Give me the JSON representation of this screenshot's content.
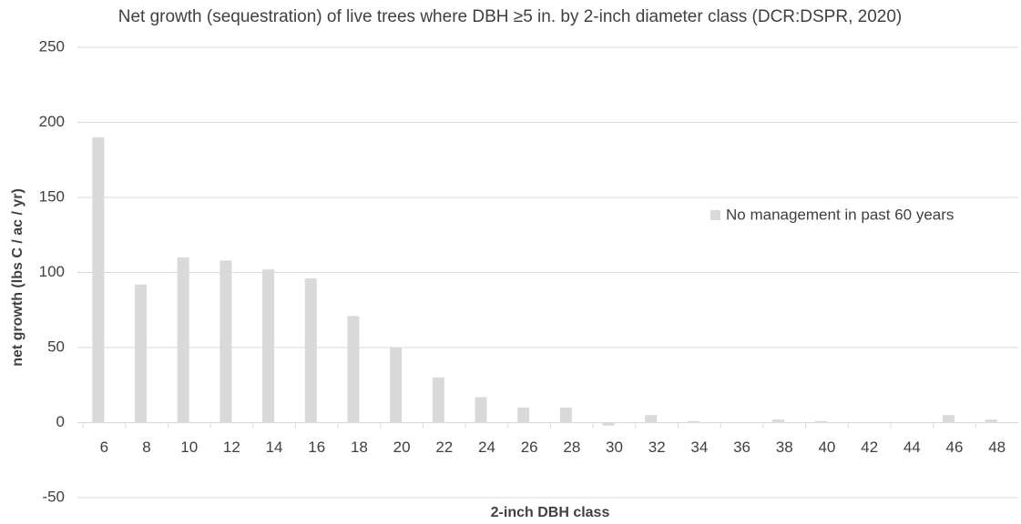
{
  "chart_data": {
    "type": "bar",
    "title": "Net growth (sequestration) of live trees where DBH ≥5 in. by 2-inch diameter class (DCR:DSPR, 2020)",
    "x_label": "2-inch DBH class",
    "y_label": "net growth (lbs C / ac / yr)",
    "categories": [
      6,
      8,
      10,
      12,
      14,
      16,
      18,
      20,
      22,
      24,
      26,
      28,
      30,
      32,
      34,
      36,
      38,
      40,
      42,
      44,
      46,
      48
    ],
    "series": [
      {
        "name": "No management in past 60 years",
        "color": "#d9d9d9",
        "values": [
          190,
          92,
          110,
          108,
          102,
          96,
          71,
          50,
          30,
          17,
          10,
          10,
          -2,
          5,
          1,
          0,
          2,
          1,
          0,
          0,
          5,
          2
        ]
      }
    ],
    "ylim": [
      -50,
      250
    ],
    "yticks": [
      -50,
      0,
      50,
      100,
      150,
      200,
      250
    ],
    "grid": true,
    "legend_position": "right"
  }
}
